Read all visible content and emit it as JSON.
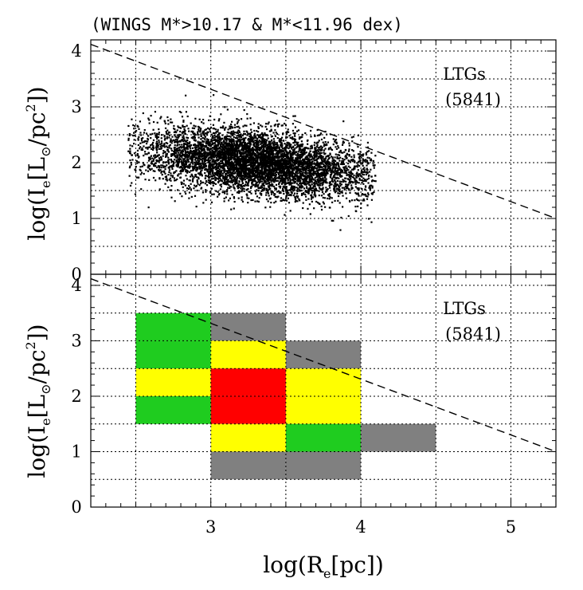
{
  "title": "(WINGS M*>10.17 & M*<11.96 dex)",
  "colors": {
    "green": "#1fcc1f",
    "yellow": "#ffff00",
    "red": "#ff0000",
    "gray": "#808080",
    "scatter": "#000000",
    "grid": "#000000"
  },
  "chart_data": [
    {
      "type": "scatter",
      "panel": "top",
      "title": "(WINGS M*>10.17 & M*<11.96 dex)",
      "xlabel": "log(R_e[pc])",
      "ylabel": "log(I_e[L_sun/pc^2])",
      "xlim": [
        2.2,
        5.3
      ],
      "ylim": [
        0,
        4.2
      ],
      "x_ticks": [
        "3",
        "4",
        "5"
      ],
      "y_ticks": [
        "0",
        "1",
        "2",
        "3",
        "4"
      ],
      "grid": true,
      "annotation": {
        "line1": "LTGs",
        "line2": "(5841)"
      },
      "n_points": 5841,
      "cloud": {
        "center": [
          3.3,
          2.0
        ],
        "sigma_major": 0.42,
        "sigma_minor": 0.26,
        "slope": -0.55,
        "x_range": [
          2.45,
          4.1
        ],
        "y_range": [
          0.45,
          3.7
        ]
      },
      "reference_line": {
        "style": "dashed",
        "x": [
          2.2,
          5.3
        ],
        "y": [
          4.12,
          1.0
        ]
      }
    },
    {
      "type": "heatmap",
      "panel": "bottom",
      "xlabel": "log(R_e[pc])",
      "ylabel": "log(I_e[L_sun/pc^2])",
      "xlim": [
        2.2,
        5.3
      ],
      "ylim": [
        0,
        4.2
      ],
      "x_ticks": [
        "3",
        "4",
        "5"
      ],
      "y_ticks": [
        "0",
        "1",
        "2",
        "3",
        "4"
      ],
      "grid": true,
      "annotation": {
        "line1": "LTGs",
        "line2": "(5841)"
      },
      "bin_size": [
        0.5,
        0.5
      ],
      "cells": [
        {
          "x": 2.5,
          "y": 3.0,
          "level": "green"
        },
        {
          "x": 2.5,
          "y": 2.5,
          "level": "green"
        },
        {
          "x": 2.5,
          "y": 2.0,
          "level": "yellow"
        },
        {
          "x": 2.5,
          "y": 1.5,
          "level": "green"
        },
        {
          "x": 3.0,
          "y": 3.0,
          "level": "gray"
        },
        {
          "x": 3.0,
          "y": 2.5,
          "level": "yellow"
        },
        {
          "x": 3.0,
          "y": 2.0,
          "level": "red"
        },
        {
          "x": 3.0,
          "y": 1.5,
          "level": "red"
        },
        {
          "x": 3.0,
          "y": 1.0,
          "level": "yellow"
        },
        {
          "x": 3.0,
          "y": 0.5,
          "level": "gray"
        },
        {
          "x": 3.5,
          "y": 2.5,
          "level": "gray"
        },
        {
          "x": 3.5,
          "y": 2.0,
          "level": "yellow"
        },
        {
          "x": 3.5,
          "y": 1.5,
          "level": "yellow"
        },
        {
          "x": 3.5,
          "y": 1.0,
          "level": "green"
        },
        {
          "x": 3.5,
          "y": 0.5,
          "level": "gray"
        },
        {
          "x": 4.0,
          "y": 1.0,
          "level": "gray"
        }
      ],
      "reference_line": {
        "style": "dashed",
        "x": [
          2.2,
          5.3
        ],
        "y": [
          4.12,
          1.0
        ]
      }
    }
  ]
}
